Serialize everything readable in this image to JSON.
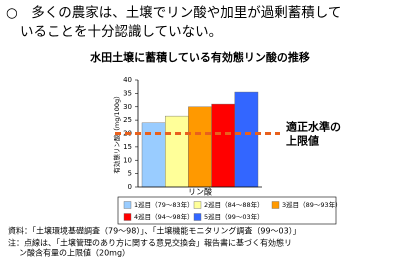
{
  "header": {
    "lines": [
      "○　多くの農家は、土壌でリン酸や加里が過剰蓄積して",
      "いることを十分認識していない。"
    ]
  },
  "chart_data": {
    "type": "bar",
    "title": "水田土壌に蓄積している有効態リン酸の推移",
    "y_label": "有効態リン酸（mg/100g）",
    "x_label": "リン酸",
    "categories": [
      "1巡目（79～83年）",
      "2巡目（84～88年）",
      "3巡目（89～93年）",
      "4巡目（94～98年）",
      "5巡目（99～03年）"
    ],
    "values": [
      24,
      26.5,
      30,
      31,
      35.5
    ],
    "colors": [
      "#99ccff",
      "#ffff99",
      "#ff9900",
      "#ff0000",
      "#3366ff"
    ],
    "ylim": [
      0,
      40
    ],
    "yticks": [
      0,
      5,
      10,
      15,
      20,
      25,
      30,
      35,
      40
    ],
    "threshold": {
      "value": 20,
      "color": "#e8601c",
      "label": [
        "適正水準の",
        "上限値"
      ]
    }
  },
  "notes": [
    "資料：「土壌環境基礎調査（79～98）」、「土壌機能モニタリング調査（99～03）」",
    "注：点線は、「土壌管理のあり方に関する意見交換会」報告書に基づく有効態リ",
    "ン酸含有量の上限値（20mg）"
  ]
}
